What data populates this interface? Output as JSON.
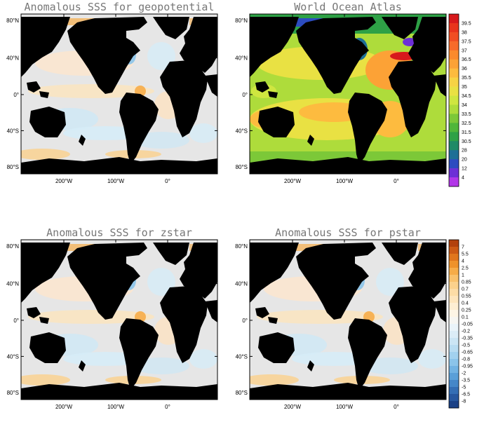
{
  "panels": [
    {
      "id": "p1",
      "title": "Anomalous SSS for geopotential",
      "field": "anomaly"
    },
    {
      "id": "p2",
      "title": "World Ocean Atlas",
      "field": "climatology"
    },
    {
      "id": "p3",
      "title": "Anomalous SSS for zstar",
      "field": "anomaly"
    },
    {
      "id": "p4",
      "title": "Anomalous SSS for pstar",
      "field": "anomaly"
    }
  ],
  "lat_ticks": [
    "80°N",
    "40°N",
    "0°",
    "40°S",
    "80°S"
  ],
  "lon_ticks": [
    "200°W",
    "100°W",
    "0°"
  ],
  "colorbar_top": {
    "labels": [
      "39.5",
      "38",
      "37.5",
      "37",
      "36.5",
      "36",
      "35.5",
      "35",
      "34.5",
      "34",
      "33.5",
      "32.5",
      "31.5",
      "30.5",
      "28",
      "20",
      "12",
      "4"
    ],
    "colors": [
      "#d7191c",
      "#e8341c",
      "#f04e22",
      "#f76b2a",
      "#fb8a2c",
      "#fca236",
      "#fdbb3f",
      "#f7d344",
      "#e9e143",
      "#cfe640",
      "#aedc3b",
      "#7cc838",
      "#4fb63a",
      "#2ea146",
      "#1f8a66",
      "#1d6f96",
      "#2c4cc0",
      "#6d2fd6",
      "#b236e8"
    ]
  },
  "colorbar_bottom": {
    "labels": [
      "7",
      "5.5",
      "4",
      "2.5",
      "1",
      "0.85",
      "0.7",
      "0.55",
      "0.4",
      "0.25",
      "0.1",
      "-0.05",
      "-0.2",
      "-0.35",
      "-0.5",
      "-0.65",
      "-0.8",
      "-0.95",
      "-2",
      "-3.5",
      "-5",
      "-6.5",
      "-8"
    ],
    "colors": [
      "#b2410c",
      "#cc5a14",
      "#e0761c",
      "#ee922a",
      "#f6ac48",
      "#f9c16c",
      "#fbd18c",
      "#fcdca6",
      "#fde5bd",
      "#fdeed3",
      "#fdf5e5",
      "#f6f6f2",
      "#eaf4f9",
      "#dcedf7",
      "#cbe5f4",
      "#b8dcf1",
      "#a2d1ee",
      "#8bc4ea",
      "#72b3e3",
      "#5a9fd8",
      "#4587c8",
      "#346eb4",
      "#27579e",
      "#1b4186"
    ]
  },
  "colors": {
    "land": "#000000",
    "anomaly_ocean": "#e6e6e6",
    "title": "#777777"
  }
}
